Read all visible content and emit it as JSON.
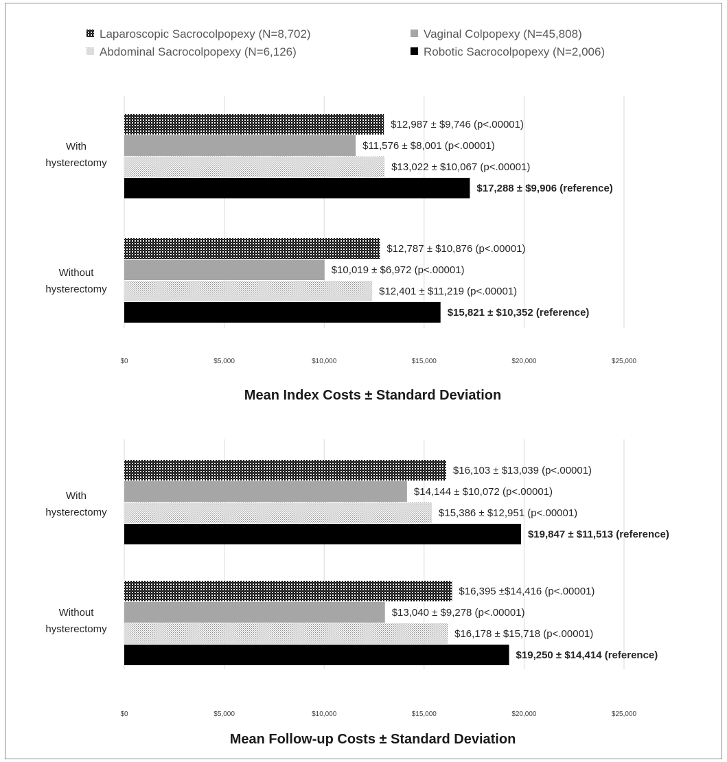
{
  "legend": [
    {
      "label": "Laparoscopic Sacrocolpopexy (N=8,702)",
      "pattern": "checker"
    },
    {
      "label": "Vaginal Colpopexy (N=45,808)",
      "pattern": "gray"
    },
    {
      "label": "Abdominal Sacrocolpopexy (N=6,126)",
      "pattern": "dots"
    },
    {
      "label": "Robotic Sacrocolpopexy (N=2,006)",
      "pattern": "black"
    }
  ],
  "colors": {
    "gray": "#a6a6a6",
    "black": "#000000",
    "grid": "#d9d9d9",
    "text": "#262626"
  },
  "chart_data": [
    {
      "type": "bar",
      "orientation": "horizontal",
      "title": "Mean Index Costs ± Standard Deviation",
      "xlim": [
        0,
        25000
      ],
      "ticks": [
        "$0",
        "$5,000",
        "$10,000",
        "$15,000",
        "$20,000",
        "$25,000"
      ],
      "tick_values": [
        0,
        5000,
        10000,
        15000,
        20000,
        25000
      ],
      "grid": true,
      "legend_position": "top",
      "groups": [
        {
          "label": [
            "With",
            "hysterectomy"
          ],
          "bars": [
            {
              "series": "Laparoscopic Sacrocolpopexy",
              "value": 12987,
              "label": "$12,987 ± $9,746 (p<.00001)",
              "bold": false
            },
            {
              "series": "Vaginal Colpopexy",
              "value": 11576,
              "label": "$11,576 ± $8,001 (p<.00001)",
              "bold": false
            },
            {
              "series": "Abdominal Sacrocolpopexy",
              "value": 13022,
              "label": "$13,022 ± $10,067 (p<.00001)",
              "bold": false
            },
            {
              "series": "Robotic Sacrocolpopexy",
              "value": 17288,
              "label": "$17,288 ± $9,906 (reference)",
              "bold": true
            }
          ]
        },
        {
          "label": [
            "Without",
            "hysterectomy"
          ],
          "bars": [
            {
              "series": "Laparoscopic Sacrocolpopexy",
              "value": 12787,
              "label": "$12,787 ± $10,876 (p<.00001)",
              "bold": false
            },
            {
              "series": "Vaginal Colpopexy",
              "value": 10019,
              "label": "$10,019 ± $6,972 (p<.00001)",
              "bold": false
            },
            {
              "series": "Abdominal Sacrocolpopexy",
              "value": 12401,
              "label": "$12,401 ± $11,219 (p<.00001)",
              "bold": false
            },
            {
              "series": "Robotic Sacrocolpopexy",
              "value": 15821,
              "label": "$15,821 ± $10,352 (reference)",
              "bold": true
            }
          ]
        }
      ]
    },
    {
      "type": "bar",
      "orientation": "horizontal",
      "title": "Mean Follow-up Costs ± Standard Deviation",
      "xlim": [
        0,
        25000
      ],
      "ticks": [
        "$0",
        "$5,000",
        "$10,000",
        "$15,000",
        "$20,000",
        "$25,000"
      ],
      "tick_values": [
        0,
        5000,
        10000,
        15000,
        20000,
        25000
      ],
      "grid": true,
      "groups": [
        {
          "label": [
            "With",
            "hysterectomy"
          ],
          "bars": [
            {
              "series": "Laparoscopic Sacrocolpopexy",
              "value": 16103,
              "label": "$16,103 ± $13,039 (p<.00001)",
              "bold": false
            },
            {
              "series": "Vaginal Colpopexy",
              "value": 14144,
              "label": "$14,144 ± $10,072 (p<.00001)",
              "bold": false
            },
            {
              "series": "Abdominal Sacrocolpopexy",
              "value": 15386,
              "label": "$15,386 ± $12,951 (p<.00001)",
              "bold": false
            },
            {
              "series": "Robotic Sacrocolpopexy",
              "value": 19847,
              "label": "$19,847 ± $11,513 (reference)",
              "bold": true
            }
          ]
        },
        {
          "label": [
            "Without",
            "hysterectomy"
          ],
          "bars": [
            {
              "series": "Laparoscopic Sacrocolpopexy",
              "value": 16395,
              "label": "$16,395 ±$14,416 (p<.00001)",
              "bold": false
            },
            {
              "series": "Vaginal Colpopexy",
              "value": 13040,
              "label": "$13,040 ± $9,278 (p<.00001)",
              "bold": false
            },
            {
              "series": "Abdominal Sacrocolpopexy",
              "value": 16178,
              "label": "$16,178 ± $15,718 (p<.00001)",
              "bold": false
            },
            {
              "series": "Robotic Sacrocolpopexy",
              "value": 19250,
              "label": "$19,250 ± $14,414 (reference)",
              "bold": true
            }
          ]
        }
      ]
    }
  ]
}
